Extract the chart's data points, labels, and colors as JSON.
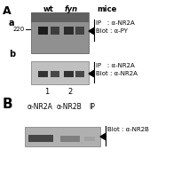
{
  "bg_color": "#ffffff",
  "label_wt": "wt",
  "label_fyn": "fyn",
  "label_mice": "mice",
  "label_a": "a",
  "label_b": "b",
  "label_220": "220",
  "label_1": "1",
  "label_2": "2",
  "label_IP_NR2A_1": "IP   : α-NR2A",
  "label_Blot_PY": "Blot : α-PY",
  "label_IP_NR2A_2": "IP   : α-NR2A",
  "label_Blot_NR2A": "Blot : α-NR2A",
  "label_aNR2A": "α-NR2A",
  "label_aNR2B": "α-NR2B",
  "label_IP": "IP",
  "label_Blot_NR2B": "Blot : α-NR2B"
}
